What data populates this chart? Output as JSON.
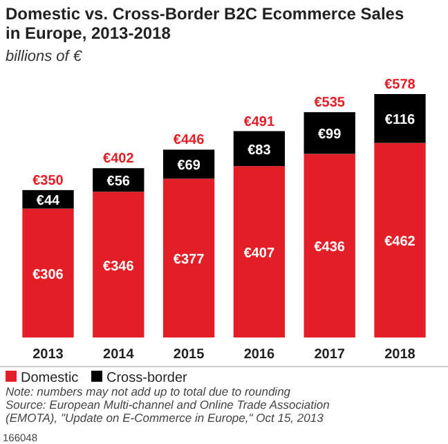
{
  "chart_data": {
    "type": "bar",
    "title": "Domestic vs. Cross-Border B2C Ecommerce Sales in Europe, 2013-2018",
    "subtitle": "billions of €",
    "categories": [
      "2013",
      "2014",
      "2015",
      "2016",
      "2017",
      "2018"
    ],
    "stacked": true,
    "legend": "bottom left",
    "series": [
      {
        "name": "Domestic",
        "color": "#e41e26",
        "values": [
          306,
          346,
          377,
          407,
          436,
          462
        ],
        "value_labels": [
          "€306",
          "€346",
          "€377",
          "€407",
          "€436",
          "€462"
        ]
      },
      {
        "name": "Cross-border",
        "color": "#000000",
        "values": [
          44,
          56,
          69,
          83,
          99,
          116
        ],
        "value_labels": [
          "€44",
          "€56",
          "€69",
          "€83",
          "€99",
          "€116"
        ]
      }
    ],
    "totals": [
      "€350",
      "€402",
      "€446",
      "€491",
      "€535",
      "€578"
    ],
    "annotations": [
      "Note: numbers may not add up to total due to rounding",
      "Source: European Multi-channel and Online Trade Association (EMOTA), \"Update on E-Commerce in Europe,\" Oct 15, 2013",
      "166048"
    ]
  }
}
